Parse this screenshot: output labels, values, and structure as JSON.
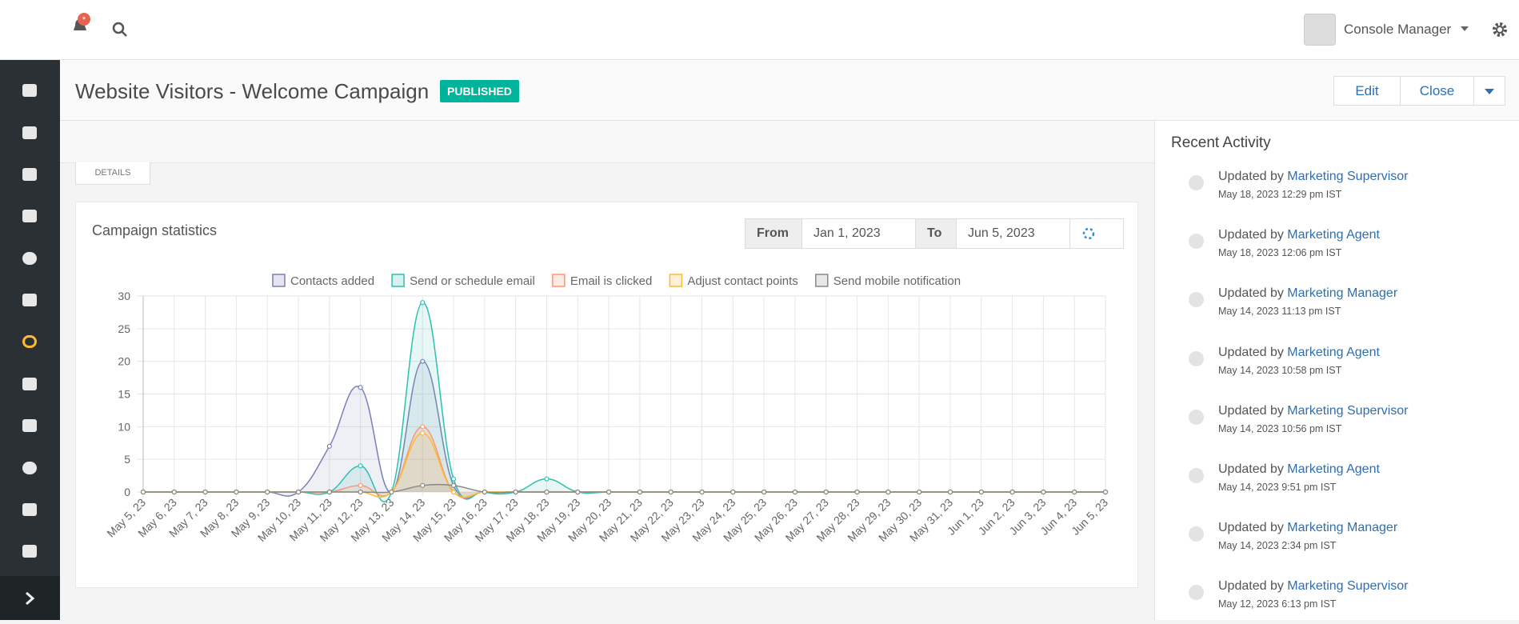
{
  "header": {
    "user": "Console Manager"
  },
  "page": {
    "title": "Website Visitors - Welcome Campaign",
    "status": "PUBLISHED",
    "edit": "Edit",
    "close": "Close",
    "details": "DETAILS"
  },
  "stats": {
    "heading": "Campaign statistics",
    "from_label": "From",
    "from": "Jan 1, 2023",
    "to_label": "To",
    "to": "Jun 5, 2023"
  },
  "chart_data": {
    "type": "line",
    "categories": [
      "May 5, 23",
      "May 6, 23",
      "May 7, 23",
      "May 8, 23",
      "May 9, 23",
      "May 10, 23",
      "May 11, 23",
      "May 12, 23",
      "May 13, 23",
      "May 14, 23",
      "May 15, 23",
      "May 16, 23",
      "May 17, 23",
      "May 18, 23",
      "May 19, 23",
      "May 20, 23",
      "May 21, 23",
      "May 22, 23",
      "May 23, 23",
      "May 24, 23",
      "May 25, 23",
      "May 26, 23",
      "May 27, 23",
      "May 28, 23",
      "May 29, 23",
      "May 30, 23",
      "May 31, 23",
      "Jun 1, 23",
      "Jun 2, 23",
      "Jun 3, 23",
      "Jun 4, 23",
      "Jun 5, 23"
    ],
    "series": [
      {
        "name": "Contacts added",
        "color": "#7b7fb5",
        "values": [
          0,
          0,
          0,
          0,
          0,
          0,
          7,
          16,
          0,
          20,
          1,
          0,
          0,
          0,
          0,
          0,
          0,
          0,
          0,
          0,
          0,
          0,
          0,
          0,
          0,
          0,
          0,
          0,
          0,
          0,
          0,
          0
        ]
      },
      {
        "name": "Send or schedule email",
        "color": "#2fbfae",
        "values": [
          0,
          0,
          0,
          0,
          0,
          0,
          0,
          4,
          0,
          29,
          2,
          0,
          0,
          2,
          0,
          0,
          0,
          0,
          0,
          0,
          0,
          0,
          0,
          0,
          0,
          0,
          0,
          0,
          0,
          0,
          0,
          0
        ]
      },
      {
        "name": "Email is clicked",
        "color": "#fd9572",
        "values": [
          0,
          0,
          0,
          0,
          0,
          0,
          0,
          1,
          0,
          10,
          0,
          0,
          0,
          0,
          0,
          0,
          0,
          0,
          0,
          0,
          0,
          0,
          0,
          0,
          0,
          0,
          0,
          0,
          0,
          0,
          0,
          0
        ]
      },
      {
        "name": "Adjust contact points",
        "color": "#fdb933",
        "values": [
          0,
          0,
          0,
          0,
          0,
          0,
          0,
          0,
          0,
          9,
          0,
          0,
          0,
          0,
          0,
          0,
          0,
          0,
          0,
          0,
          0,
          0,
          0,
          0,
          0,
          0,
          0,
          0,
          0,
          0,
          0,
          0
        ]
      },
      {
        "name": "Send mobile notification",
        "color": "#888888",
        "values": [
          0,
          0,
          0,
          0,
          0,
          0,
          0,
          0,
          0,
          1,
          1,
          0,
          0,
          0,
          0,
          0,
          0,
          0,
          0,
          0,
          0,
          0,
          0,
          0,
          0,
          0,
          0,
          0,
          0,
          0,
          0,
          0
        ]
      }
    ],
    "ylim": [
      0,
      30
    ],
    "yticks": [
      0,
      5,
      10,
      15,
      20,
      25,
      30
    ],
    "grid": true
  },
  "activity": {
    "title": "Recent Activity",
    "items": [
      {
        "prefix": "Updated by",
        "user": "Marketing Supervisor",
        "time": "May 18, 2023 12:29 pm IST"
      },
      {
        "prefix": "Updated by",
        "user": "Marketing Agent",
        "time": "May 18, 2023 12:06 pm IST"
      },
      {
        "prefix": "Updated by",
        "user": "Marketing Manager",
        "time": "May 14, 2023 11:13 pm IST"
      },
      {
        "prefix": "Updated by",
        "user": "Marketing Agent",
        "time": "May 14, 2023 10:58 pm IST"
      },
      {
        "prefix": "Updated by",
        "user": "Marketing Supervisor",
        "time": "May 14, 2023 10:56 pm IST"
      },
      {
        "prefix": "Updated by",
        "user": "Marketing Agent",
        "time": "May 14, 2023 9:51 pm IST"
      },
      {
        "prefix": "Updated by",
        "user": "Marketing Manager",
        "time": "May 14, 2023 2:34 pm IST"
      },
      {
        "prefix": "Updated by",
        "user": "Marketing Supervisor",
        "time": "May 12, 2023 6:13 pm IST"
      }
    ]
  }
}
